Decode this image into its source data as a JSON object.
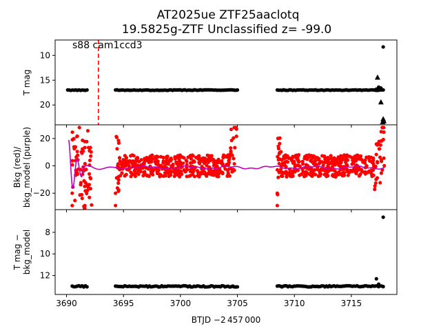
{
  "chart_data": {
    "type": "scatter",
    "title_line1": "AT2025ue  ZTF25aaclotq",
    "title_line2": "19.5825g-ZTF Unclassified z= -99.0",
    "annotation": "s88 cam1ccd3",
    "xlabel": "BTJD −2 457 000",
    "xlim": [
      3689.0,
      3719.0
    ],
    "xticks": [
      3690,
      3695,
      3700,
      3705,
      3710,
      3715
    ],
    "xtick_labels": [
      "3690",
      "3695",
      "3700",
      "3705",
      "3710",
      "3715"
    ],
    "discovery_line_x": 3692.8,
    "panels": [
      {
        "id": "tmag",
        "ylabel": [
          "T mag"
        ],
        "ylim": [
          24.0,
          6.9
        ],
        "yticks": [
          10,
          15,
          20
        ],
        "ytick_labels": [
          "10",
          "15",
          "20"
        ],
        "lightcurve_segments": [
          {
            "x_start": 3690.1,
            "x_end": 3691.8,
            "y": 17.0
          },
          {
            "x_start": 3694.3,
            "x_end": 3705.0,
            "y": 17.0
          },
          {
            "x_start": 3708.5,
            "x_end": 3717.8,
            "y": 17.0
          }
        ],
        "extra_points": [
          {
            "x": 3717.2,
            "y": 16.8
          },
          {
            "x": 3717.4,
            "y": 16.4
          },
          {
            "x": 3717.6,
            "y": 16.6
          },
          {
            "x": 3717.8,
            "y": 8.3
          }
        ],
        "upper_limits": [
          {
            "x": 3717.3,
            "y": 14.4
          },
          {
            "x": 3717.6,
            "y": 19.4
          },
          {
            "x": 3717.8,
            "y": 22.8
          },
          {
            "x": 3717.85,
            "y": 23.2
          },
          {
            "x": 3717.75,
            "y": 23.4
          }
        ]
      },
      {
        "id": "bkg",
        "ylabel": [
          "Bkg (red)/",
          "bkg_model (purple)"
        ],
        "ylim": [
          -32.0,
          30.0
        ],
        "yticks": [
          -20,
          0,
          20
        ],
        "ytick_labels": [
          "−20",
          "0",
          "20"
        ],
        "background_segments": [
          {
            "x_start": 3690.5,
            "x_end": 3692.3
          },
          {
            "x_start": 3694.3,
            "x_end": 3705.0
          },
          {
            "x_start": 3708.5,
            "x_end": 3717.9
          }
        ],
        "background_color": "#ff0000",
        "model_color": "#bf00bf"
      },
      {
        "id": "diff",
        "ylabel": [
          "T mag −",
          "bkg_model"
        ],
        "ylim": [
          13.75,
          5.9
        ],
        "yticks": [
          8,
          10,
          12
        ],
        "ytick_labels": [
          "8",
          "10",
          "12"
        ],
        "lightcurve_segments": [
          {
            "x_start": 3690.5,
            "x_end": 3691.8,
            "y": 13.0
          },
          {
            "x_start": 3694.3,
            "x_end": 3705.0,
            "y": 13.0
          },
          {
            "x_start": 3708.5,
            "x_end": 3717.8,
            "y": 13.0
          }
        ],
        "extra_points": [
          {
            "x": 3717.2,
            "y": 12.3
          },
          {
            "x": 3717.4,
            "y": 12.8
          },
          {
            "x": 3717.8,
            "y": 6.6
          }
        ]
      }
    ]
  }
}
